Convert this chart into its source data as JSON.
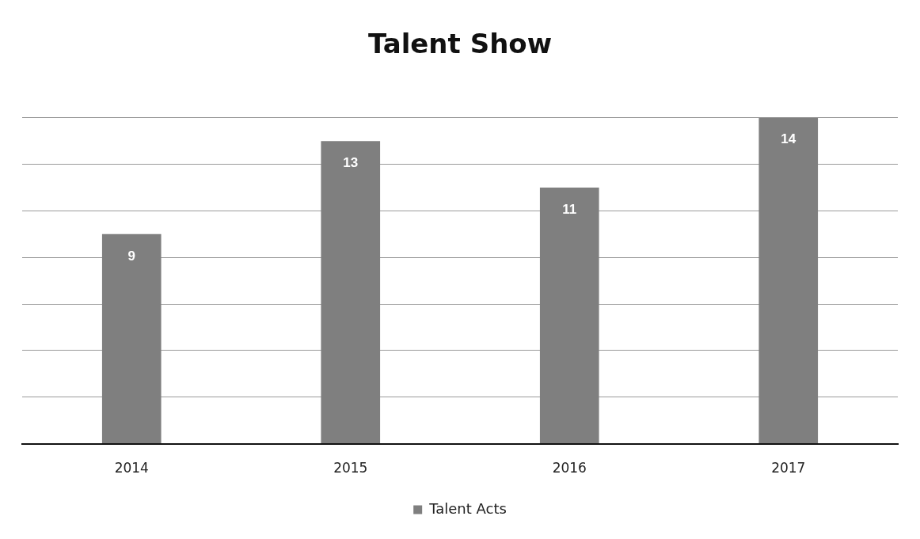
{
  "chart_data": {
    "type": "bar",
    "title": "Talent Show",
    "categories": [
      "2014",
      "2015",
      "2016",
      "2017"
    ],
    "series": [
      {
        "name": "Talent Acts",
        "color": "#7f7f7f",
        "values": [
          9,
          13,
          11,
          14
        ]
      }
    ],
    "ylim": [
      0,
      14
    ],
    "yticks": [
      0,
      2,
      4,
      6,
      8,
      10,
      12,
      14
    ],
    "tick_labels": "x",
    "grid": "y",
    "legend": "bottom",
    "data_labels": true
  }
}
